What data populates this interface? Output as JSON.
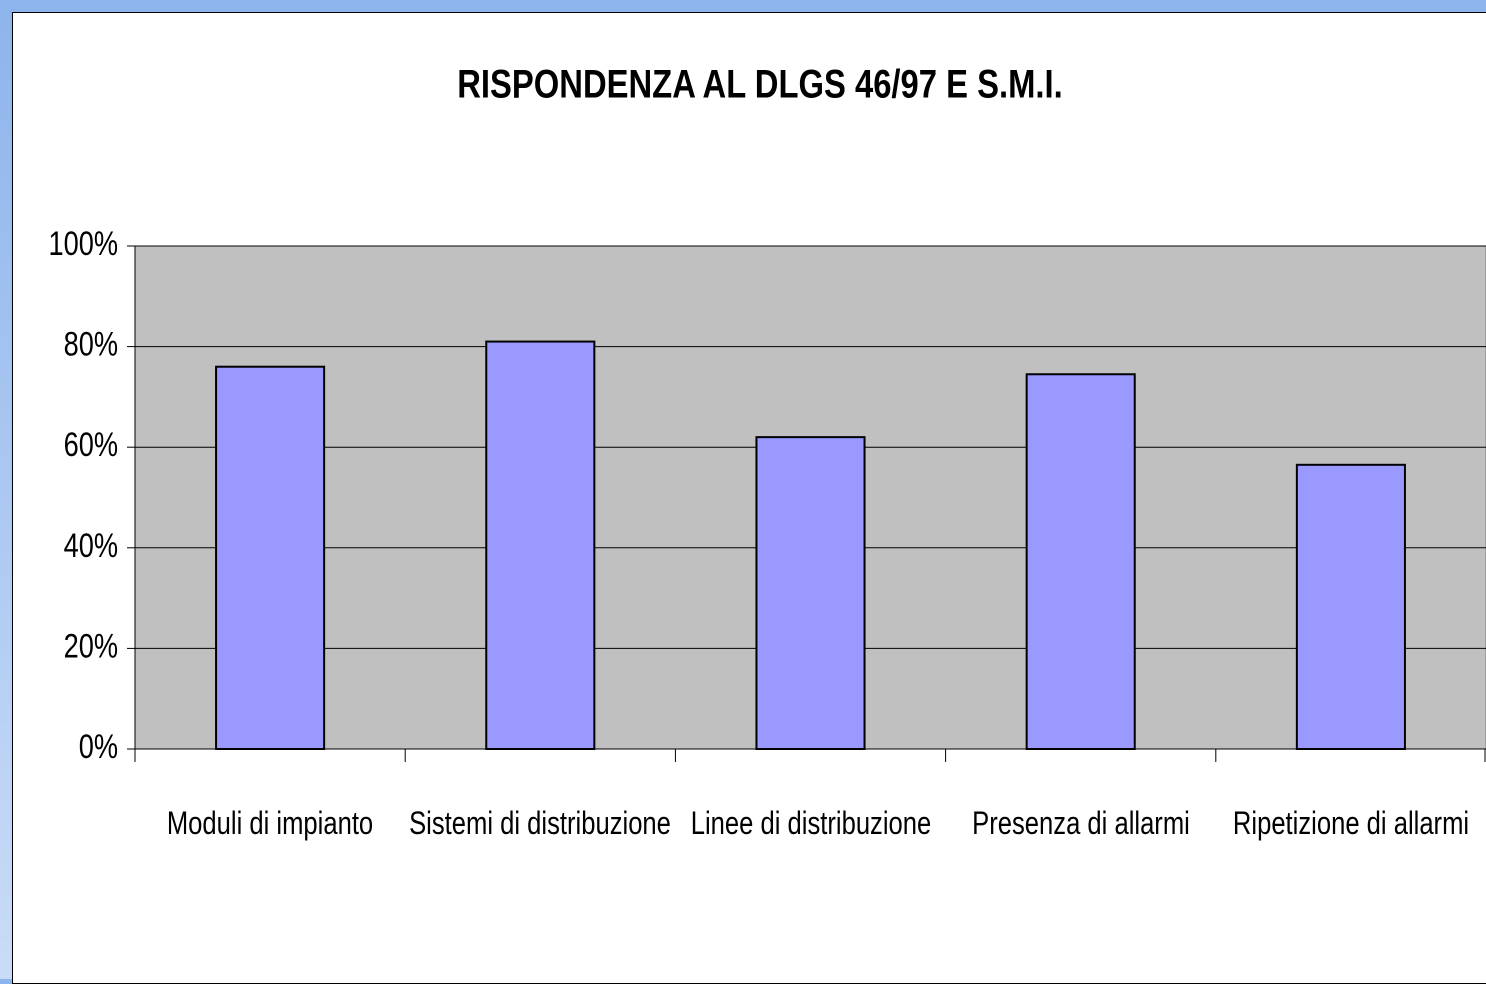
{
  "chart_data": {
    "type": "bar",
    "title": "RISPONDENZA AL DLGS 46/97 E S.M.I.",
    "categories": [
      "Moduli di impianto",
      "Sistemi di distribuzione",
      "Linee di distribuzione",
      "Presenza di allarmi",
      "Ripetizione di allarmi"
    ],
    "values": [
      76,
      81,
      62,
      74.5,
      56.5
    ],
    "color": "#9999ff",
    "ylim": [
      0,
      100
    ],
    "yticks": [
      {
        "value": 0,
        "label": "0%"
      },
      {
        "value": 20,
        "label": "20%"
      },
      {
        "value": 40,
        "label": "40%"
      },
      {
        "value": 60,
        "label": "60%"
      },
      {
        "value": 80,
        "label": "80%"
      },
      {
        "value": 100,
        "label": "100%"
      }
    ],
    "grid": true
  }
}
